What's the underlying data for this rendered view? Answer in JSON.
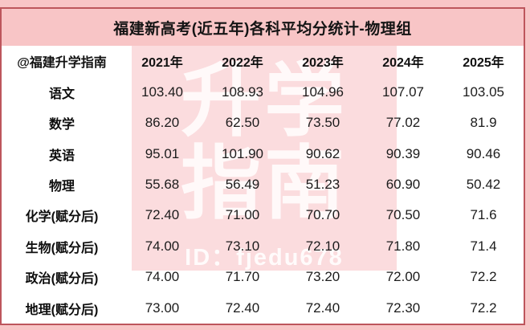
{
  "page": {
    "bg_color": "#f8c5c6",
    "card_border_color": "#bd565c",
    "watermark_band_color": "#fbdcde"
  },
  "title": "福建新高考(近五年)各科平均分统计-物理组",
  "table": {
    "source_label": "@福建升学指南",
    "year_headers": [
      "2021年",
      "2022年",
      "2023年",
      "2024年",
      "2025年"
    ],
    "rows": [
      {
        "subject": "语文",
        "values": [
          "103.40",
          "108.93",
          "104.96",
          "107.07",
          "103.05"
        ]
      },
      {
        "subject": "数学",
        "values": [
          "86.20",
          "62.50",
          "73.50",
          "77.02",
          "81.9"
        ]
      },
      {
        "subject": "英语",
        "values": [
          "95.01",
          "101.90",
          "90.62",
          "90.39",
          "90.46"
        ]
      },
      {
        "subject": "物理",
        "values": [
          "55.68",
          "56.49",
          "51.23",
          "60.90",
          "50.42"
        ]
      },
      {
        "subject": "化学(赋分后)",
        "values": [
          "72.40",
          "71.00",
          "70.70",
          "70.50",
          "71.6"
        ]
      },
      {
        "subject": "生物(赋分后)",
        "values": [
          "74.00",
          "73.10",
          "72.10",
          "71.80",
          "71.4"
        ]
      },
      {
        "subject": "政治(赋分后)",
        "values": [
          "74.00",
          "71.70",
          "73.20",
          "72.00",
          "72.2"
        ]
      },
      {
        "subject": "地理(赋分后)",
        "values": [
          "73.00",
          "72.40",
          "72.40",
          "72.30",
          "72.2"
        ]
      }
    ]
  },
  "watermark": {
    "line1": "升学",
    "line2": "指南",
    "id_text": "ID：fjedu678"
  },
  "chart_data": {
    "type": "table",
    "title": "福建新高考(近五年)各科平均分统计-物理组",
    "source": "@福建升学指南",
    "categories": [
      "2021年",
      "2022年",
      "2023年",
      "2024年",
      "2025年"
    ],
    "series": [
      {
        "name": "语文",
        "values": [
          103.4,
          108.93,
          104.96,
          107.07,
          103.05
        ]
      },
      {
        "name": "数学",
        "values": [
          86.2,
          62.5,
          73.5,
          77.02,
          81.9
        ]
      },
      {
        "name": "英语",
        "values": [
          95.01,
          101.9,
          90.62,
          90.39,
          90.46
        ]
      },
      {
        "name": "物理",
        "values": [
          55.68,
          56.49,
          51.23,
          60.9,
          50.42
        ]
      },
      {
        "name": "化学(赋分后)",
        "values": [
          72.4,
          71.0,
          70.7,
          70.5,
          71.6
        ]
      },
      {
        "name": "生物(赋分后)",
        "values": [
          74.0,
          73.1,
          72.1,
          71.8,
          71.4
        ]
      },
      {
        "name": "政治(赋分后)",
        "values": [
          74.0,
          71.7,
          73.2,
          72.0,
          72.2
        ]
      },
      {
        "name": "地理(赋分后)",
        "values": [
          73.0,
          72.4,
          72.4,
          72.3,
          72.2
        ]
      }
    ]
  }
}
